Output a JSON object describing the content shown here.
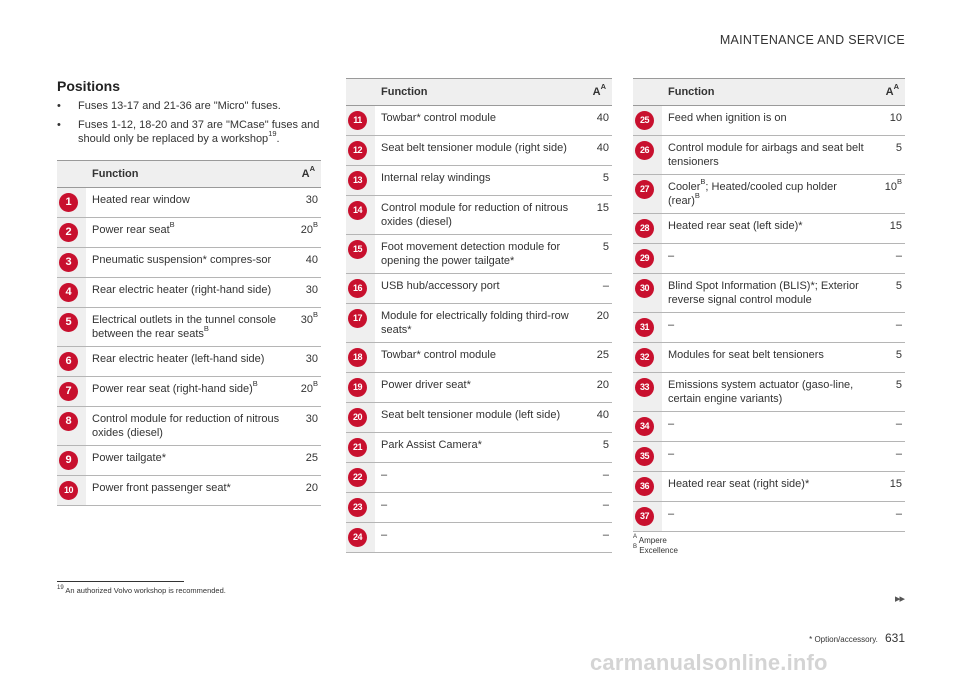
{
  "header": {
    "title": "MAINTENANCE AND SERVICE"
  },
  "section_title": "Positions",
  "bullets": [
    {
      "symbol": "•",
      "text": "Fuses 13-17 and 21-36 are \"Micro\" fuses."
    },
    {
      "symbol": "•",
      "text": "Fuses 1-12, 18-20 and 37 are \"MCase\" fuses and should only be replaced by a workshop",
      "ref": "19",
      "tail": "."
    }
  ],
  "table_header": {
    "function": "Function",
    "ampere": "A",
    "ampere_sup": "A"
  },
  "tables": [
    [
      {
        "num": "1",
        "fn": "Heated rear window",
        "amp": "30"
      },
      {
        "num": "2",
        "fn": "Power rear seat",
        "fn_sup": "B",
        "amp": "20",
        "amp_sup": "B"
      },
      {
        "num": "3",
        "fn": "Pneumatic suspension* compres-sor",
        "amp": "40"
      },
      {
        "num": "4",
        "fn": "Rear electric heater (right-hand side)",
        "amp": "30"
      },
      {
        "num": "5",
        "fn": "Electrical outlets in the tunnel console between the rear seats",
        "fn_sup": "B",
        "amp": "30",
        "amp_sup": "B"
      },
      {
        "num": "6",
        "fn": "Rear electric heater (left-hand side)",
        "amp": "30"
      },
      {
        "num": "7",
        "fn": "Power rear seat (right-hand side)",
        "fn_sup": "B",
        "amp": "20",
        "amp_sup": "B"
      },
      {
        "num": "8",
        "fn": "Control module for reduction of nitrous oxides (diesel)",
        "amp": "30"
      },
      {
        "num": "9",
        "fn": "Power tailgate*",
        "amp": "25"
      },
      {
        "num": "10",
        "fn": "Power front passenger seat*",
        "amp": "20"
      }
    ],
    [
      {
        "num": "11",
        "fn": "Towbar* control module",
        "amp": "40"
      },
      {
        "num": "12",
        "fn": "Seat belt tensioner module (right side)",
        "amp": "40"
      },
      {
        "num": "13",
        "fn": "Internal relay windings",
        "amp": "5"
      },
      {
        "num": "14",
        "fn": "Control module for reduction of nitrous oxides (diesel)",
        "amp": "15"
      },
      {
        "num": "15",
        "fn": "Foot movement detection module for opening the power tailgate*",
        "amp": "5"
      },
      {
        "num": "16",
        "fn": "USB hub/accessory port",
        "amp": "–"
      },
      {
        "num": "17",
        "fn": "Module for electrically folding third-row seats*",
        "amp": "20"
      },
      {
        "num": "18",
        "fn": "Towbar* control module",
        "amp": "25"
      },
      {
        "num": "19",
        "fn": "Power driver seat*",
        "amp": "20"
      },
      {
        "num": "20",
        "fn": "Seat belt tensioner module (left side)",
        "amp": "40"
      },
      {
        "num": "21",
        "fn": "Park Assist Camera*",
        "amp": "5"
      },
      {
        "num": "22",
        "fn": "–",
        "amp": "–"
      },
      {
        "num": "23",
        "fn": "–",
        "amp": "–"
      },
      {
        "num": "24",
        "fn": "–",
        "amp": "–"
      }
    ],
    [
      {
        "num": "25",
        "fn": "Feed when ignition is on",
        "amp": "10"
      },
      {
        "num": "26",
        "fn": "Control module for airbags and seat belt tensioners",
        "amp": "5"
      },
      {
        "num": "27",
        "fn": "Cooler",
        "fn_sup": "B",
        "fn_b": "; Heated/cooled cup holder (rear)",
        "fn_sup_b": "B",
        "amp": "10",
        "amp_sup": "B"
      },
      {
        "num": "28",
        "fn": "Heated rear seat (left side)*",
        "amp": "15"
      },
      {
        "num": "29",
        "fn": "–",
        "amp": "–"
      },
      {
        "num": "30",
        "fn": "Blind Spot Information (BLIS)*; Exterior reverse signal control module",
        "amp": "5"
      },
      {
        "num": "31",
        "fn": "–",
        "amp": "–"
      },
      {
        "num": "32",
        "fn": "Modules for seat belt tensioners",
        "amp": "5"
      },
      {
        "num": "33",
        "fn": "Emissions system actuator (gaso-line, certain engine variants)",
        "amp": "5"
      },
      {
        "num": "34",
        "fn": "–",
        "amp": "–"
      },
      {
        "num": "35",
        "fn": "–",
        "amp": "–"
      },
      {
        "num": "36",
        "fn": "Heated rear seat (right side)*",
        "amp": "15"
      },
      {
        "num": "37",
        "fn": "–",
        "amp": "–"
      }
    ]
  ],
  "table_notes": [
    {
      "key": "A",
      "text": "Ampere"
    },
    {
      "key": "B",
      "text": "Excellence"
    }
  ],
  "footnote": {
    "num": "19",
    "text": "An authorized Volvo workshop is recommended."
  },
  "nav_arrows": "▸▸",
  "footer": {
    "option_note": "* Option/accessory.",
    "page_number": "631"
  },
  "watermark": "carmanualsonline.info",
  "colors": {
    "badge": "#c8102e",
    "header_bg": "#efefef"
  }
}
